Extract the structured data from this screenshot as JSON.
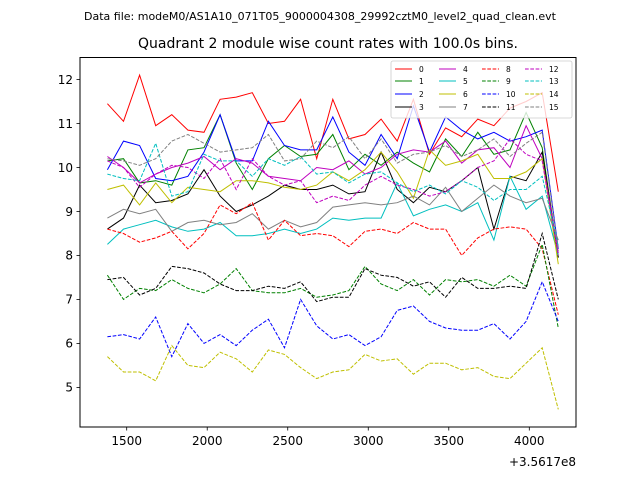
{
  "header_text": "Data file: modeM0/AS1A10_071T05_9000004308_29992cztM0_level2_quad_clean.evt",
  "chart_data": {
    "type": "line",
    "title": "Quadrant 2 module wise count rates with 100.0s bins.",
    "xlabel": "",
    "ylabel": "",
    "x_offset_label": "+3.5617e8",
    "xlim": [
      1210,
      4290
    ],
    "ylim": [
      4.1,
      12.5
    ],
    "xticks": [
      1500,
      2000,
      2500,
      3000,
      3500,
      4000
    ],
    "yticks": [
      5,
      6,
      7,
      8,
      9,
      10,
      11,
      12
    ],
    "grid": false,
    "legend_position": "top-right",
    "x": [
      1380,
      1480,
      1580,
      1680,
      1780,
      1880,
      1980,
      2080,
      2180,
      2280,
      2380,
      2480,
      2580,
      2680,
      2780,
      2880,
      2980,
      3080,
      3180,
      3280,
      3380,
      3480,
      3580,
      3680,
      3780,
      3880,
      3980,
      4080,
      4180
    ],
    "series": [
      {
        "name": "0",
        "color": "#ff0000",
        "dash": false,
        "values": [
          11.45,
          11.05,
          12.1,
          10.95,
          11.2,
          10.85,
          10.8,
          11.55,
          11.6,
          11.7,
          11.0,
          11.05,
          11.55,
          10.2,
          11.55,
          10.65,
          10.75,
          11.1,
          10.6,
          11.55,
          10.3,
          10.9,
          10.7,
          11.1,
          10.95,
          11.35,
          11.5,
          11.7,
          9.45
        ]
      },
      {
        "name": "1",
        "color": "#008000",
        "dash": false,
        "values": [
          10.15,
          10.2,
          9.65,
          9.7,
          9.6,
          10.4,
          10.45,
          11.2,
          10.1,
          9.5,
          10.2,
          10.5,
          10.25,
          10.3,
          10.75,
          9.95,
          10.3,
          10.05,
          10.35,
          10.1,
          9.9,
          10.65,
          10.25,
          10.8,
          10.3,
          10.4,
          11.25,
          10.45,
          7.95
        ]
      },
      {
        "name": "2",
        "color": "#0000ff",
        "dash": false,
        "values": [
          9.95,
          10.6,
          10.5,
          9.75,
          9.7,
          9.8,
          10.35,
          11.2,
          10.15,
          10.15,
          11.05,
          10.5,
          10.4,
          10.4,
          11.15,
          10.35,
          10.05,
          10.75,
          10.2,
          11.4,
          10.35,
          11.15,
          10.85,
          10.65,
          10.8,
          10.6,
          10.7,
          10.85,
          8.15
        ]
      },
      {
        "name": "3",
        "color": "#000000",
        "dash": false,
        "values": [
          8.6,
          8.85,
          9.6,
          9.2,
          9.25,
          9.4,
          9.95,
          9.35,
          9.0,
          9.15,
          9.35,
          9.6,
          9.5,
          9.5,
          9.6,
          9.4,
          9.45,
          10.35,
          9.5,
          9.2,
          9.55,
          9.45,
          9.7,
          10.0,
          8.6,
          9.8,
          9.7,
          10.35,
          7.95
        ]
      },
      {
        "name": "4",
        "color": "#bf00bf",
        "dash": false,
        "values": [
          10.25,
          10.0,
          9.65,
          9.85,
          10.0,
          10.1,
          10.25,
          9.95,
          10.2,
          10.1,
          9.8,
          9.75,
          9.7,
          10.0,
          9.95,
          10.15,
          9.85,
          10.0,
          10.3,
          10.4,
          10.35,
          10.6,
          10.1,
          10.4,
          10.45,
          10.0,
          10.95,
          10.2,
          8.05
        ]
      },
      {
        "name": "5",
        "color": "#00bfbf",
        "dash": false,
        "values": [
          8.25,
          8.6,
          8.7,
          8.8,
          8.65,
          8.55,
          8.6,
          8.75,
          8.45,
          8.45,
          8.5,
          8.6,
          8.5,
          8.6,
          8.85,
          8.8,
          8.85,
          8.85,
          9.65,
          8.9,
          9.05,
          9.15,
          9.0,
          9.2,
          8.35,
          9.8,
          9.05,
          9.35,
          8.0
        ]
      },
      {
        "name": "6",
        "color": "#bfbf00",
        "dash": false,
        "values": [
          9.5,
          9.6,
          9.15,
          9.65,
          9.2,
          9.55,
          9.5,
          9.45,
          9.7,
          9.7,
          9.65,
          9.55,
          9.5,
          9.6,
          9.9,
          9.7,
          9.95,
          10.35,
          9.9,
          9.3,
          10.4,
          10.05,
          10.15,
          10.3,
          9.75,
          9.75,
          9.9,
          10.2,
          7.8
        ]
      },
      {
        "name": "7",
        "color": "#808080",
        "dash": false,
        "values": [
          8.85,
          9.05,
          8.95,
          9.05,
          8.55,
          8.75,
          8.8,
          8.7,
          8.75,
          8.95,
          8.6,
          8.8,
          8.65,
          8.75,
          9.1,
          9.15,
          9.2,
          9.15,
          9.2,
          9.35,
          9.15,
          9.55,
          9.0,
          9.3,
          9.6,
          9.35,
          9.2,
          9.3,
          8.35
        ]
      },
      {
        "name": "8",
        "color": "#ff0000",
        "dash": true,
        "values": [
          8.6,
          8.5,
          8.3,
          8.4,
          8.55,
          8.15,
          8.5,
          9.15,
          8.95,
          9.2,
          8.35,
          8.8,
          8.45,
          8.5,
          8.45,
          8.2,
          8.55,
          8.6,
          8.5,
          8.75,
          8.6,
          8.6,
          8.0,
          8.4,
          8.6,
          8.65,
          8.6,
          8.15,
          6.65
        ]
      },
      {
        "name": "9",
        "color": "#008000",
        "dash": true,
        "values": [
          7.55,
          7.0,
          7.25,
          7.2,
          7.45,
          7.25,
          7.15,
          7.35,
          7.7,
          7.2,
          7.15,
          7.15,
          7.25,
          7.05,
          7.1,
          7.2,
          7.75,
          7.35,
          7.2,
          7.45,
          7.1,
          7.45,
          7.4,
          7.45,
          7.3,
          7.55,
          7.3,
          8.25,
          6.35
        ]
      },
      {
        "name": "10",
        "color": "#0000ff",
        "dash": true,
        "values": [
          6.15,
          6.2,
          6.1,
          6.6,
          5.7,
          6.45,
          6.0,
          6.2,
          5.95,
          6.3,
          6.55,
          5.9,
          7.0,
          6.4,
          6.1,
          6.2,
          5.95,
          6.15,
          6.75,
          6.85,
          6.5,
          6.35,
          6.3,
          6.3,
          6.45,
          6.1,
          6.5,
          7.4,
          6.5
        ]
      },
      {
        "name": "11",
        "color": "#000000",
        "dash": true,
        "values": [
          7.45,
          7.5,
          7.1,
          7.25,
          7.75,
          7.7,
          7.6,
          7.35,
          7.2,
          7.2,
          7.3,
          7.25,
          7.4,
          6.95,
          7.05,
          7.05,
          7.7,
          7.55,
          7.5,
          7.3,
          7.4,
          7.05,
          7.5,
          7.25,
          7.25,
          7.3,
          7.25,
          8.5,
          7.0
        ]
      },
      {
        "name": "12",
        "color": "#bf00bf",
        "dash": true,
        "values": [
          10.15,
          10.0,
          9.55,
          9.85,
          10.05,
          10.0,
          9.75,
          10.2,
          9.5,
          10.2,
          9.8,
          9.6,
          9.7,
          9.2,
          9.35,
          9.25,
          9.6,
          9.8,
          9.6,
          9.5,
          9.35,
          9.45,
          9.7,
          10.0,
          10.15,
          10.65,
          10.3,
          10.15,
          8.0
        ]
      },
      {
        "name": "13",
        "color": "#00bfbf",
        "dash": true,
        "values": [
          9.85,
          9.75,
          9.7,
          10.55,
          9.35,
          9.45,
          10.3,
          10.15,
          10.15,
          9.8,
          10.2,
          10.05,
          10.25,
          9.85,
          9.9,
          9.65,
          9.85,
          9.9,
          9.65,
          9.45,
          9.6,
          9.4,
          9.7,
          9.55,
          9.25,
          9.5,
          9.5,
          9.8,
          8.2
        ]
      },
      {
        "name": "14",
        "color": "#bfbf00",
        "dash": true,
        "values": [
          5.7,
          5.35,
          5.35,
          5.15,
          5.95,
          5.5,
          5.45,
          5.8,
          5.65,
          5.35,
          5.85,
          5.75,
          5.45,
          5.2,
          5.35,
          5.4,
          5.75,
          5.6,
          5.65,
          5.3,
          5.55,
          5.55,
          5.4,
          5.45,
          5.25,
          5.2,
          5.55,
          5.9,
          4.5
        ]
      },
      {
        "name": "15",
        "color": "#808080",
        "dash": true,
        "values": [
          10.2,
          10.15,
          10.05,
          10.2,
          10.6,
          10.75,
          10.55,
          10.35,
          10.4,
          10.45,
          10.75,
          10.15,
          10.2,
          10.6,
          10.45,
          10.7,
          10.2,
          10.65,
          10.1,
          10.3,
          10.35,
          10.5,
          10.25,
          10.4,
          10.65,
          10.25,
          10.55,
          10.8,
          8.1
        ]
      }
    ]
  }
}
